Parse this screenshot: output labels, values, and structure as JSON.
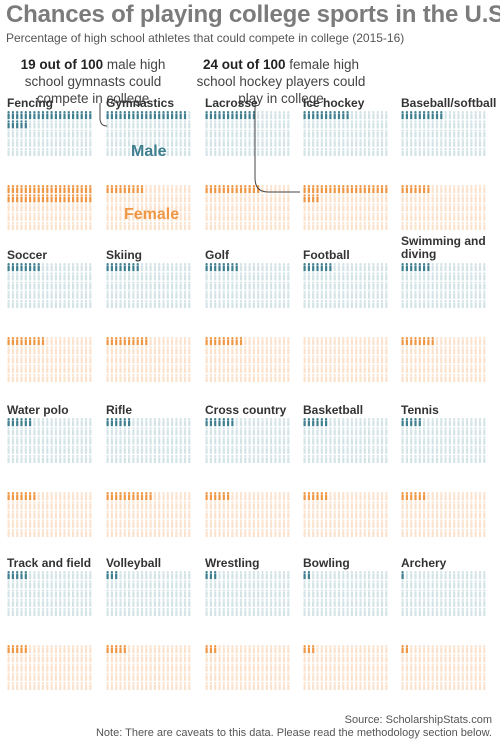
{
  "title": "Chances of playing college sports in the U.S.",
  "subtitle": "Percentage of high school athletes that could compete in college (2015-16)",
  "annotations": {
    "left": {
      "highlight": "19 out of 100",
      "text": " male high school gymnasts could compete in college"
    },
    "right": {
      "highlight": "24 out of 100",
      "text": " female high school hockey players could play in college"
    }
  },
  "labels": {
    "male": "Male",
    "female": "Female"
  },
  "colors": {
    "male_filled": "#3f7f8f",
    "male_empty": "#d3e3e6",
    "female_filled": "#ef9744",
    "female_empty": "#fbe2cd",
    "title": "#7b7b7b"
  },
  "footer": {
    "source": "Source: ScholarshipStats.com",
    "note": "Note: There are caveats to this data. Please read the methodology section below."
  },
  "chart_data": {
    "type": "pictogram",
    "unit": "out of 100 high school athletes",
    "series_names": [
      "Male",
      "Female"
    ],
    "sports": [
      {
        "name": "Fencing",
        "male": 25,
        "female": 40
      },
      {
        "name": "Gymnastics",
        "male": 19,
        "female": 9
      },
      {
        "name": "Lacrosse",
        "male": 12,
        "female": 13
      },
      {
        "name": "Ice hockey",
        "male": 11,
        "female": 24
      },
      {
        "name": "Baseball/softball",
        "male": 10,
        "female": 7
      },
      {
        "name": "Soccer",
        "male": 8,
        "female": 9
      },
      {
        "name": "Skiing",
        "male": 8,
        "female": 10
      },
      {
        "name": "Golf",
        "male": 8,
        "female": 9
      },
      {
        "name": "Football",
        "male": 7,
        "female": null
      },
      {
        "name": "Swimming and diving",
        "male": 7,
        "female": 8
      },
      {
        "name": "Water polo",
        "male": 6,
        "female": 7
      },
      {
        "name": "Rifle",
        "male": 6,
        "female": 11
      },
      {
        "name": "Cross country",
        "male": 7,
        "female": 6
      },
      {
        "name": "Basketball",
        "male": 6,
        "female": 6
      },
      {
        "name": "Tennis",
        "male": 5,
        "female": 6
      },
      {
        "name": "Track and field",
        "male": 5,
        "female": 5
      },
      {
        "name": "Volleyball",
        "male": 3,
        "female": 5
      },
      {
        "name": "Wrestling",
        "male": 3,
        "female": 3
      },
      {
        "name": "Bowling",
        "male": 2,
        "female": 3
      },
      {
        "name": "Archery",
        "male": 1,
        "female": 2
      }
    ]
  }
}
